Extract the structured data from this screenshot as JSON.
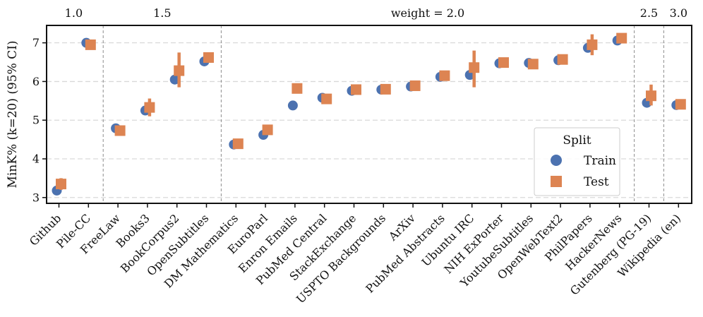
{
  "chart_data": {
    "type": "scatter",
    "ylabel": "MinK% (k=20) (95% CI)",
    "ylim": [
      2.85,
      7.45
    ],
    "yticks": [
      3,
      4,
      5,
      6,
      7
    ],
    "grid": "horizontal dashed",
    "legend": {
      "title": "Split",
      "placement": "lower-right"
    },
    "categories": [
      "Github",
      "Pile-CC",
      "FreeLaw",
      "Books3",
      "BookCorpus2",
      "OpenSubtitles",
      "DM Mathematics",
      "EuroParl",
      "Enron Emails",
      "PubMed Central",
      "StackExchange",
      "USPTO Backgrounds",
      "ArXiv",
      "PubMed Abstracts",
      "Ubuntu IRC",
      "NIH ExPorter",
      "YoutubeSubtitles",
      "OpenWebText2",
      "PhilPapers",
      "HackerNews",
      "Gutenberg (PG-19)",
      "Wikipedia (en)"
    ],
    "groups": [
      {
        "label": "1.0",
        "start": 0,
        "end": 1
      },
      {
        "label": "1.5",
        "start": 2,
        "end": 5
      },
      {
        "label": "weight = 2.0",
        "start": 6,
        "end": 19
      },
      {
        "label": "2.5",
        "start": 20,
        "end": 20
      },
      {
        "label": "3.0",
        "start": 21,
        "end": 21
      }
    ],
    "series": [
      {
        "name": "Train",
        "marker": "circle",
        "color": "#4c72b0",
        "values": [
          3.18,
          7.0,
          4.79,
          5.25,
          6.05,
          6.52,
          4.37,
          4.62,
          5.38,
          5.58,
          5.76,
          5.79,
          5.87,
          6.12,
          6.17,
          6.47,
          6.48,
          6.55,
          6.87,
          7.06,
          5.45,
          5.39
        ],
        "ci": [
          [
            3.13,
            3.23
          ],
          [
            6.97,
            7.03
          ],
          [
            4.76,
            4.82
          ],
          [
            5.2,
            5.3
          ],
          [
            5.95,
            6.15
          ],
          [
            6.48,
            6.56
          ],
          [
            4.33,
            4.41
          ],
          [
            4.57,
            4.67
          ],
          [
            5.27,
            5.5
          ],
          [
            5.54,
            5.62
          ],
          [
            5.72,
            5.8
          ],
          [
            5.75,
            5.83
          ],
          [
            5.83,
            5.91
          ],
          [
            6.08,
            6.16
          ],
          [
            6.12,
            6.22
          ],
          [
            6.43,
            6.51
          ],
          [
            6.44,
            6.52
          ],
          [
            6.51,
            6.59
          ],
          [
            6.82,
            6.92
          ],
          [
            7.02,
            7.1
          ],
          [
            5.4,
            5.5
          ],
          [
            5.35,
            5.43
          ]
        ]
      },
      {
        "name": "Test",
        "marker": "square",
        "color": "#dd8452",
        "values": [
          3.35,
          6.95,
          4.73,
          5.33,
          6.28,
          6.62,
          4.39,
          4.75,
          5.82,
          5.55,
          5.79,
          5.8,
          5.89,
          6.15,
          6.36,
          6.49,
          6.45,
          6.57,
          6.95,
          7.12,
          5.63,
          5.41
        ],
        "ci": [
          [
            3.2,
            3.5
          ],
          [
            6.9,
            7.0
          ],
          [
            4.68,
            4.78
          ],
          [
            5.1,
            5.56
          ],
          [
            5.85,
            6.75
          ],
          [
            6.58,
            6.66
          ],
          [
            4.34,
            4.44
          ],
          [
            4.68,
            4.82
          ],
          [
            5.7,
            5.95
          ],
          [
            5.51,
            5.59
          ],
          [
            5.75,
            5.83
          ],
          [
            5.76,
            5.84
          ],
          [
            5.85,
            5.93
          ],
          [
            6.11,
            6.19
          ],
          [
            5.85,
            6.8
          ],
          [
            6.45,
            6.53
          ],
          [
            6.41,
            6.49
          ],
          [
            6.53,
            6.61
          ],
          [
            6.68,
            7.22
          ],
          [
            7.08,
            7.16
          ],
          [
            5.38,
            5.92
          ],
          [
            5.37,
            5.45
          ]
        ]
      }
    ]
  }
}
